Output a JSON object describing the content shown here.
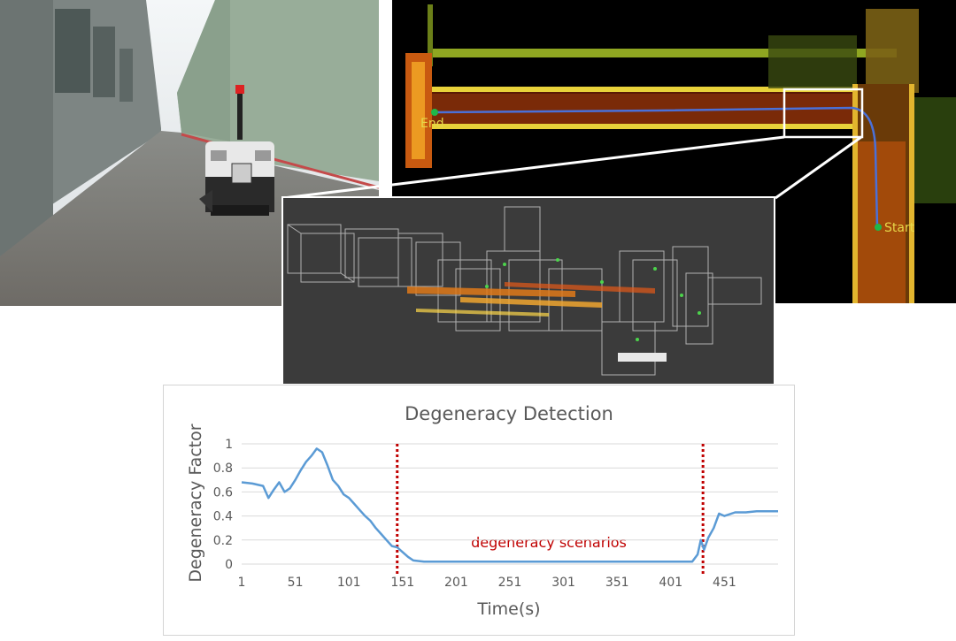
{
  "map": {
    "end_label": "End",
    "start_label": "Start"
  },
  "chart_data": {
    "type": "line",
    "title": "Degeneracy Detection",
    "xlabel": "Time(s)",
    "ylabel": "Degeneracy Factor",
    "x_ticks": [
      "1",
      "51",
      "101",
      "151",
      "201",
      "251",
      "301",
      "351",
      "401",
      "451"
    ],
    "y_ticks": [
      "0",
      "0.2",
      "0.4",
      "0.6",
      "0.8",
      "1"
    ],
    "xlim": [
      1,
      501
    ],
    "ylim": [
      0,
      1
    ],
    "grid": true,
    "annotation": "degeneracy scenarios",
    "vertical_markers": [
      146,
      431
    ],
    "colors": {
      "line": "#5b9bd5",
      "marker": "#c00000",
      "annotation": "#c00000"
    },
    "series": [
      {
        "x": [
          1,
          11,
          21,
          26,
          31,
          36,
          41,
          46,
          51,
          56,
          61,
          66,
          71,
          76,
          81,
          86,
          91,
          96,
          101,
          106,
          111,
          116,
          121,
          126,
          131,
          136,
          141,
          146,
          151,
          156,
          161,
          171,
          181,
          201,
          231,
          261,
          291,
          321,
          351,
          381,
          401,
          421,
          426,
          429,
          432,
          436,
          441,
          446,
          451,
          461,
          471,
          481,
          501
        ],
        "y": [
          0.68,
          0.67,
          0.65,
          0.55,
          0.62,
          0.68,
          0.6,
          0.63,
          0.7,
          0.78,
          0.85,
          0.9,
          0.96,
          0.93,
          0.82,
          0.7,
          0.65,
          0.58,
          0.55,
          0.5,
          0.45,
          0.4,
          0.36,
          0.3,
          0.25,
          0.2,
          0.15,
          0.14,
          0.1,
          0.06,
          0.03,
          0.02,
          0.02,
          0.02,
          0.02,
          0.02,
          0.02,
          0.02,
          0.02,
          0.02,
          0.02,
          0.02,
          0.08,
          0.2,
          0.12,
          0.22,
          0.3,
          0.42,
          0.4,
          0.43,
          0.43,
          0.44,
          0.44
        ]
      }
    ]
  }
}
